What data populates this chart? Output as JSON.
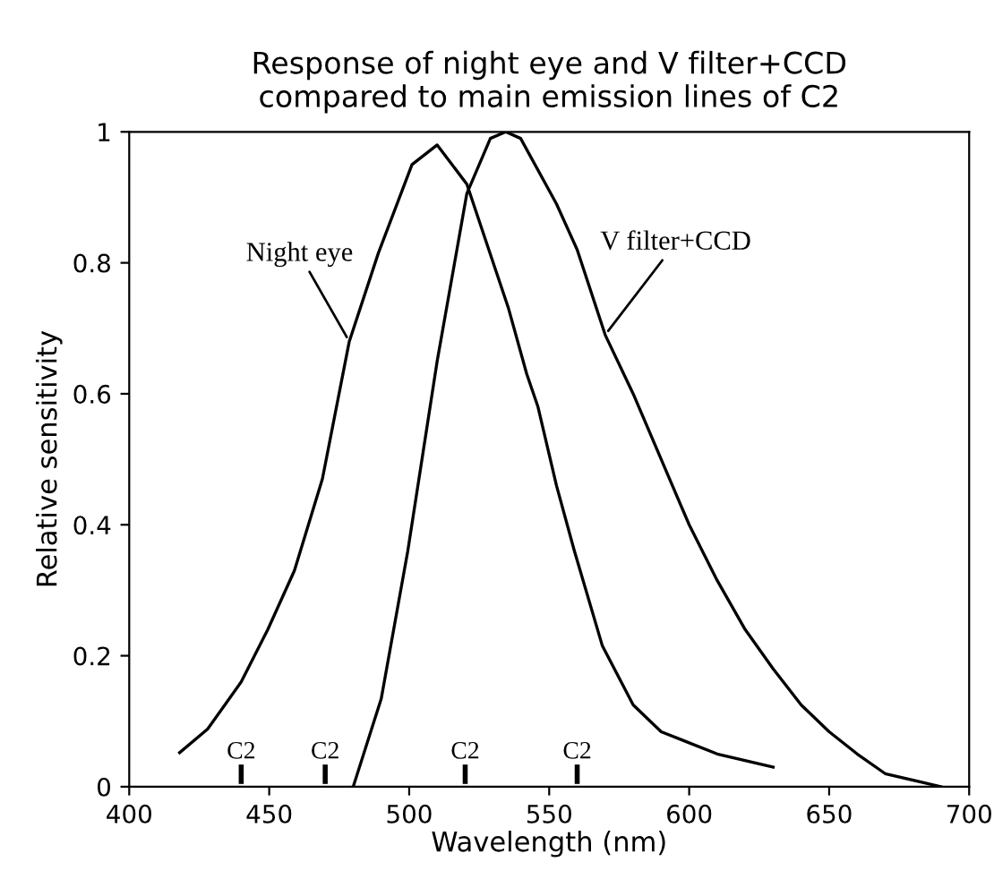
{
  "chart_data": {
    "type": "line",
    "title": "Response of night eye and V filter+CCD\ncompared to main emission lines of C2",
    "xlabel": "Wavelength (nm)",
    "ylabel": "Relative sensitivity",
    "series": [
      {
        "name": "Night eye",
        "color": "#000000",
        "x": [
          418,
          428,
          440,
          449.5,
          459,
          469,
          478.6,
          489,
          501,
          510,
          520.6,
          535.5,
          542,
          546,
          552.6,
          559,
          569,
          580,
          590,
          610,
          630
        ],
        "values": [
          0.052,
          0.088,
          0.16,
          0.24,
          0.33,
          0.47,
          0.68,
          0.815,
          0.95,
          0.98,
          0.92,
          0.73,
          0.63,
          0.58,
          0.46,
          0.36,
          0.215,
          0.125,
          0.084,
          0.05,
          0.03
        ]
      },
      {
        "name": "V filter+CCD",
        "color": "#000000",
        "x": [
          480,
          490,
          499.5,
          510,
          520.6,
          529,
          534.5,
          539.8,
          552.6,
          560,
          570,
          580,
          590,
          600,
          610,
          620,
          630,
          640,
          650,
          660,
          670,
          690
        ],
        "values": [
          0,
          0.134,
          0.36,
          0.65,
          0.906,
          0.99,
          1.0,
          0.99,
          0.89,
          0.82,
          0.69,
          0.6,
          0.5,
          0.4,
          0.315,
          0.24,
          0.18,
          0.125,
          0.084,
          0.05,
          0.02,
          0
        ]
      }
    ],
    "ref_lines": [
      {
        "axis": "x",
        "value": 440,
        "label": "C2"
      },
      {
        "axis": "x",
        "value": 470,
        "label": "C2"
      },
      {
        "axis": "x",
        "value": 520,
        "label": "C2"
      },
      {
        "axis": "x",
        "value": 560,
        "label": "C2"
      }
    ],
    "xlim": [
      400,
      700
    ],
    "xticks": [
      400,
      450,
      500,
      550,
      600,
      650,
      700
    ],
    "ylim": [
      0,
      1
    ],
    "yticks": [
      0,
      0.2,
      0.4,
      0.6,
      0.8,
      1
    ],
    "grid": false,
    "legend": false,
    "line_style": "solid",
    "marker": "none"
  }
}
